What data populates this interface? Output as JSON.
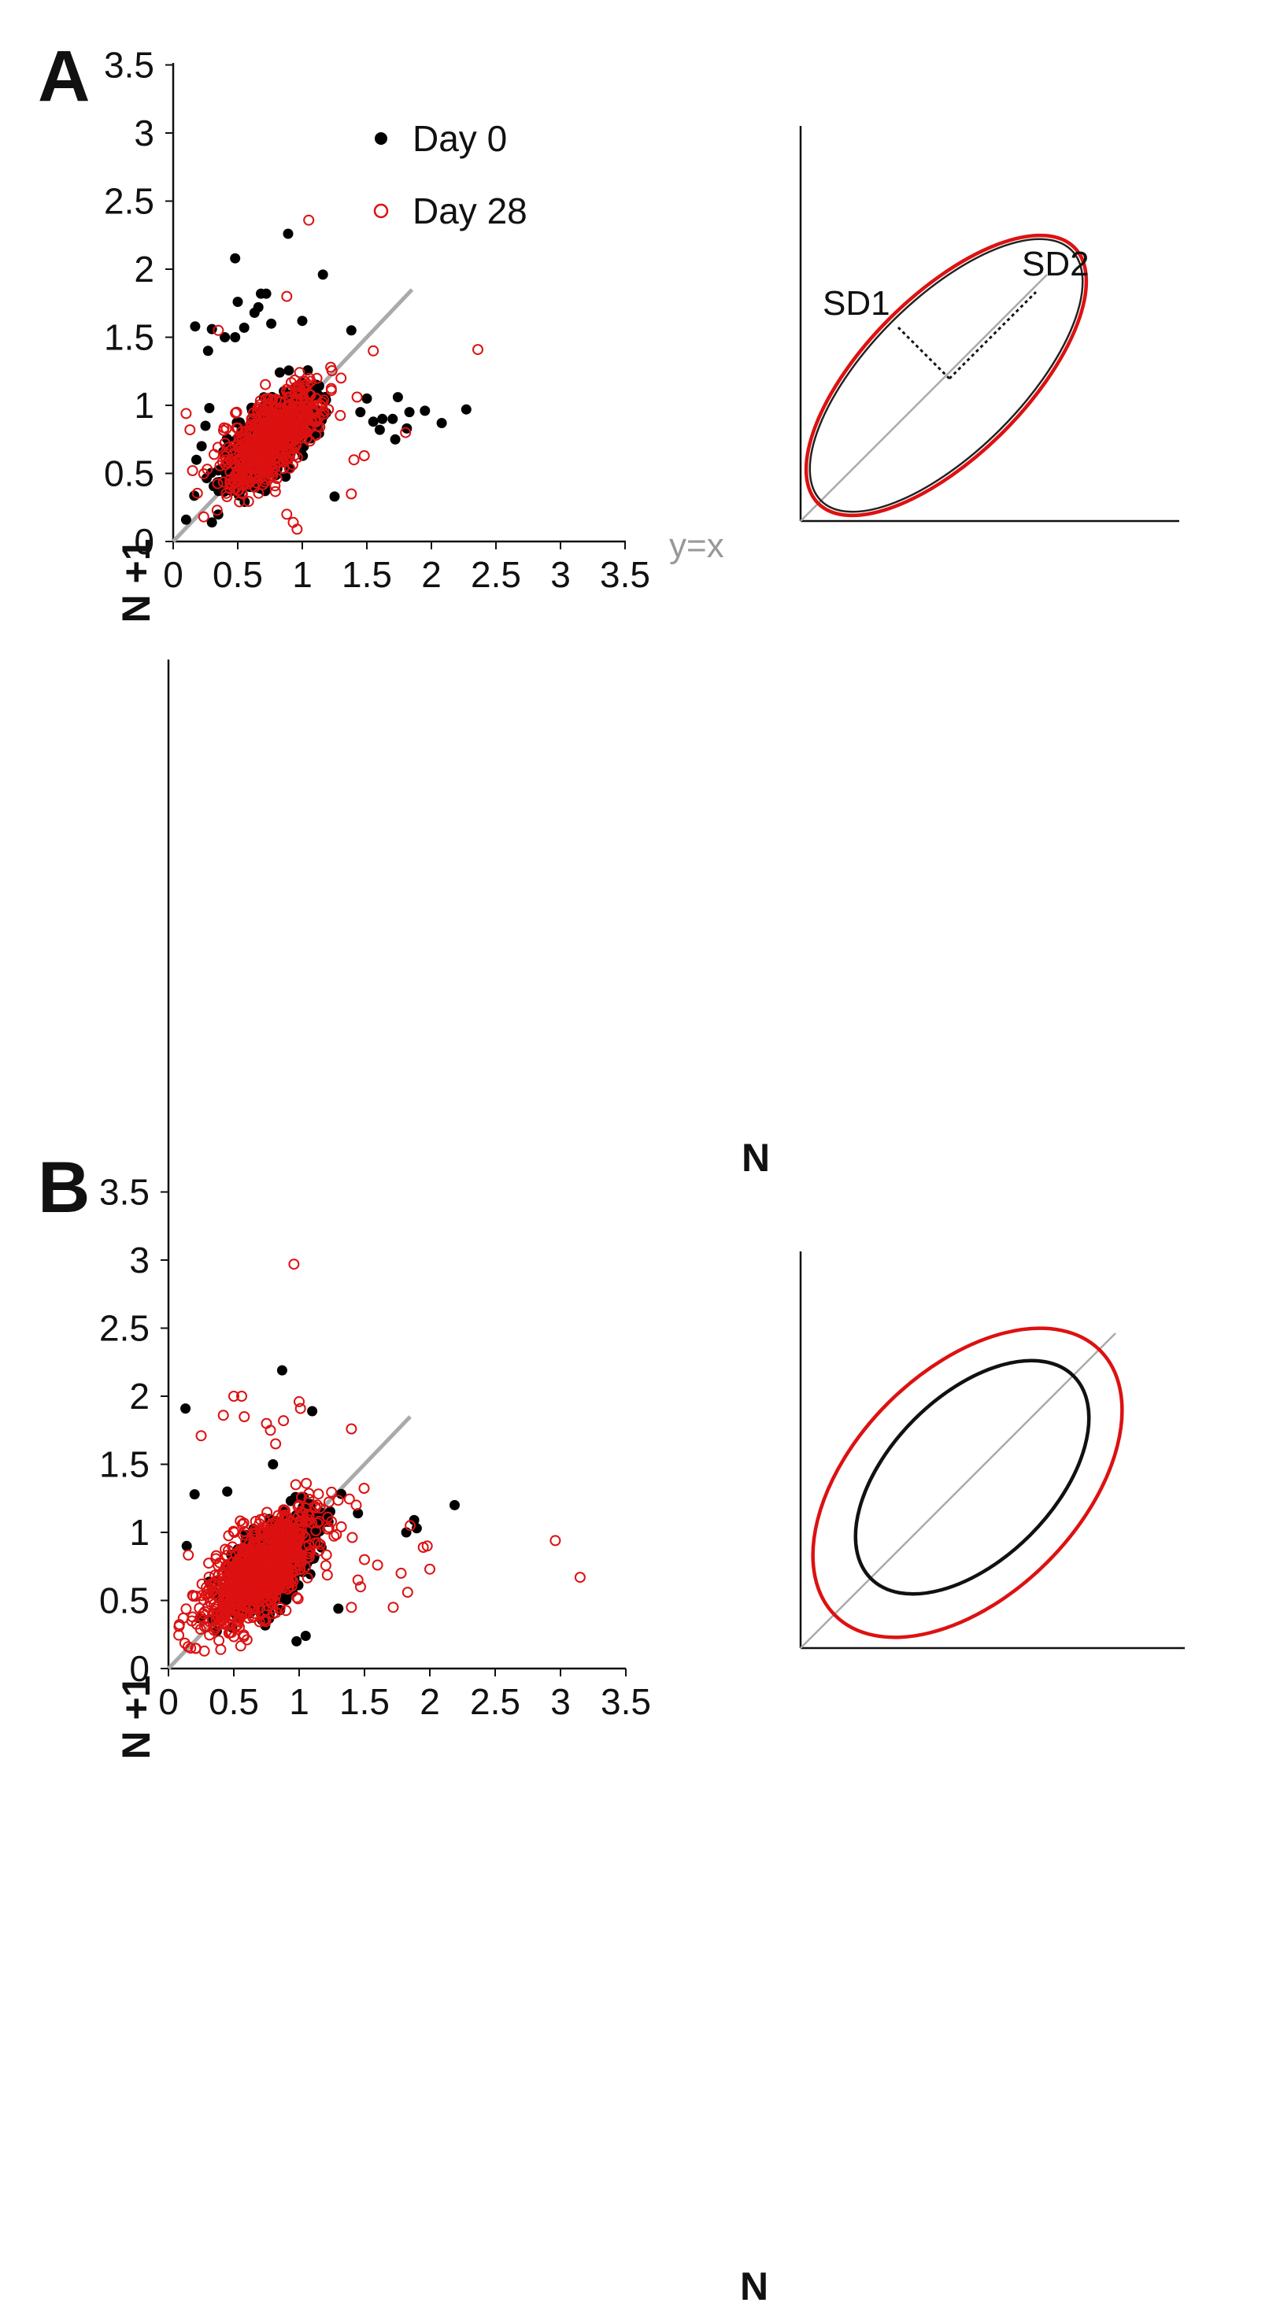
{
  "colors": {
    "day0": "#000000",
    "day28": "#dd1111",
    "reference": "#aaaaaa",
    "axis": "#111111"
  },
  "chart_data": [
    {
      "type": "scatter",
      "panel_label": "A",
      "title": "",
      "xlabel": "N",
      "ylabel": "N +1",
      "xlim": [
        0,
        3.5
      ],
      "ylim": [
        0,
        3.5
      ],
      "ticks": [
        "0",
        "0.5",
        "1",
        "1.5",
        "2",
        "2.5",
        "3",
        "3.5"
      ],
      "legend": {
        "placement": "top-left",
        "entries": [
          "Day 0",
          "Day 28"
        ]
      },
      "reference_line": {
        "label": "y=x",
        "from": [
          0,
          0
        ],
        "to": [
          1.85,
          1.85
        ]
      },
      "series": [
        {
          "name": "Day 0",
          "marker": "filled-circle",
          "cluster": {
            "count": 1500,
            "center": [
              0.74,
              0.74
            ],
            "sd_along_identity": 0.2,
            "sd_across_identity": 0.085
          },
          "outliers": [
            [
              0.48,
              2.08
            ],
            [
              0.89,
              2.26
            ],
            [
              1.16,
              1.96
            ],
            [
              0.68,
              1.82
            ],
            [
              0.72,
              1.82
            ],
            [
              0.17,
              1.58
            ],
            [
              0.3,
              1.56
            ],
            [
              1.38,
              1.55
            ],
            [
              0.55,
              1.57
            ],
            [
              0.27,
              1.4
            ],
            [
              0.48,
              1.5
            ],
            [
              0.66,
              1.72
            ],
            [
              0.63,
              1.68
            ],
            [
              0.76,
              1.6
            ],
            [
              1.0,
              1.62
            ],
            [
              0.5,
              1.76
            ],
            [
              0.4,
              1.5
            ],
            [
              1.25,
              0.33
            ],
            [
              0.3,
              0.14
            ],
            [
              0.1,
              0.16
            ],
            [
              2.27,
              0.97
            ],
            [
              2.08,
              0.87
            ],
            [
              1.95,
              0.96
            ],
            [
              1.83,
              0.95
            ],
            [
              1.74,
              1.06
            ],
            [
              1.72,
              0.75
            ],
            [
              1.62,
              0.9
            ],
            [
              1.55,
              0.88
            ],
            [
              1.81,
              0.83
            ],
            [
              1.7,
              0.9
            ],
            [
              1.5,
              1.05
            ],
            [
              1.45,
              0.95
            ],
            [
              1.6,
              0.82
            ],
            [
              0.25,
              0.85
            ],
            [
              0.28,
              0.98
            ],
            [
              0.22,
              0.7
            ],
            [
              0.18,
              0.6
            ]
          ]
        },
        {
          "name": "Day 28",
          "marker": "open-circle",
          "cluster": {
            "count": 650,
            "center": [
              0.76,
              0.76
            ],
            "sd_along_identity": 0.24,
            "sd_across_identity": 0.11
          },
          "outliers": [
            [
              1.05,
              2.36
            ],
            [
              2.36,
              1.41
            ],
            [
              0.88,
              1.8
            ],
            [
              0.35,
              1.55
            ],
            [
              1.38,
              0.35
            ],
            [
              0.1,
              0.94
            ],
            [
              0.13,
              0.82
            ],
            [
              0.15,
              0.52
            ],
            [
              0.93,
              0.14
            ],
            [
              0.96,
              0.09
            ],
            [
              0.88,
              0.2
            ],
            [
              1.55,
              1.4
            ],
            [
              1.8,
              0.8
            ],
            [
              1.48,
              0.63
            ],
            [
              1.4,
              0.6
            ],
            [
              1.3,
              1.2
            ],
            [
              1.22,
              1.28
            ]
          ]
        }
      ],
      "inset": {
        "description_labels": [
          "SD1",
          "SD2"
        ],
        "ellipses": [
          {
            "series": "Day 0"
          },
          {
            "series": "Day 28"
          }
        ]
      }
    },
    {
      "type": "scatter",
      "panel_label": "B",
      "title": "",
      "xlabel": "N",
      "ylabel": "N +1",
      "xlim": [
        0,
        3.5
      ],
      "ylim": [
        0,
        3.5
      ],
      "ticks": [
        "0",
        "0.5",
        "1",
        "1.5",
        "2",
        "2.5",
        "3",
        "3.5"
      ],
      "reference_line": {
        "from": [
          0,
          0
        ],
        "to": [
          1.85,
          1.85
        ]
      },
      "series": [
        {
          "name": "Day 0",
          "marker": "filled-circle",
          "cluster": {
            "count": 1500,
            "center": [
              0.78,
              0.78
            ],
            "sd_along_identity": 0.2,
            "sd_across_identity": 0.09
          },
          "outliers": [
            [
              0.87,
              2.19
            ],
            [
              0.13,
              1.91
            ],
            [
              1.1,
              1.89
            ],
            [
              0.45,
              1.3
            ],
            [
              2.19,
              1.2
            ],
            [
              1.45,
              1.14
            ],
            [
              1.88,
              1.09
            ],
            [
              1.82,
              1.0
            ],
            [
              1.9,
              1.03
            ],
            [
              1.3,
              0.44
            ],
            [
              1.05,
              0.24
            ],
            [
              0.98,
              0.2
            ],
            [
              0.2,
              1.28
            ],
            [
              0.14,
              0.9
            ],
            [
              0.8,
              1.5
            ]
          ]
        },
        {
          "name": "Day 28",
          "marker": "open-circle",
          "cluster": {
            "count": 900,
            "center": [
              0.7,
              0.72
            ],
            "sd_along_identity": 0.28,
            "sd_across_identity": 0.13
          },
          "outliers": [
            [
              0.96,
              2.97
            ],
            [
              2.96,
              0.94
            ],
            [
              3.15,
              0.67
            ],
            [
              0.5,
              2.0
            ],
            [
              0.56,
              2.0
            ],
            [
              0.58,
              1.85
            ],
            [
              0.42,
              1.86
            ],
            [
              0.25,
              1.71
            ],
            [
              1.0,
              1.96
            ],
            [
              1.01,
              1.91
            ],
            [
              0.88,
              1.82
            ],
            [
              1.4,
              1.76
            ],
            [
              0.75,
              1.8
            ],
            [
              0.78,
              1.75
            ],
            [
              0.82,
              1.65
            ],
            [
              0.15,
              0.16
            ],
            [
              0.17,
              0.15
            ],
            [
              0.4,
              0.14
            ],
            [
              1.72,
              0.45
            ],
            [
              1.4,
              0.45
            ],
            [
              1.78,
              0.7
            ],
            [
              1.85,
              1.05
            ],
            [
              1.98,
              0.9
            ],
            [
              2.0,
              0.73
            ],
            [
              1.95,
              0.89
            ],
            [
              1.6,
              0.76
            ],
            [
              1.5,
              0.8
            ],
            [
              1.45,
              0.65
            ],
            [
              1.83,
              0.56
            ],
            [
              1.47,
              0.6
            ]
          ]
        }
      ],
      "inset": {
        "ellipses": [
          {
            "series": "Day 0"
          },
          {
            "series": "Day 28"
          }
        ]
      }
    }
  ]
}
